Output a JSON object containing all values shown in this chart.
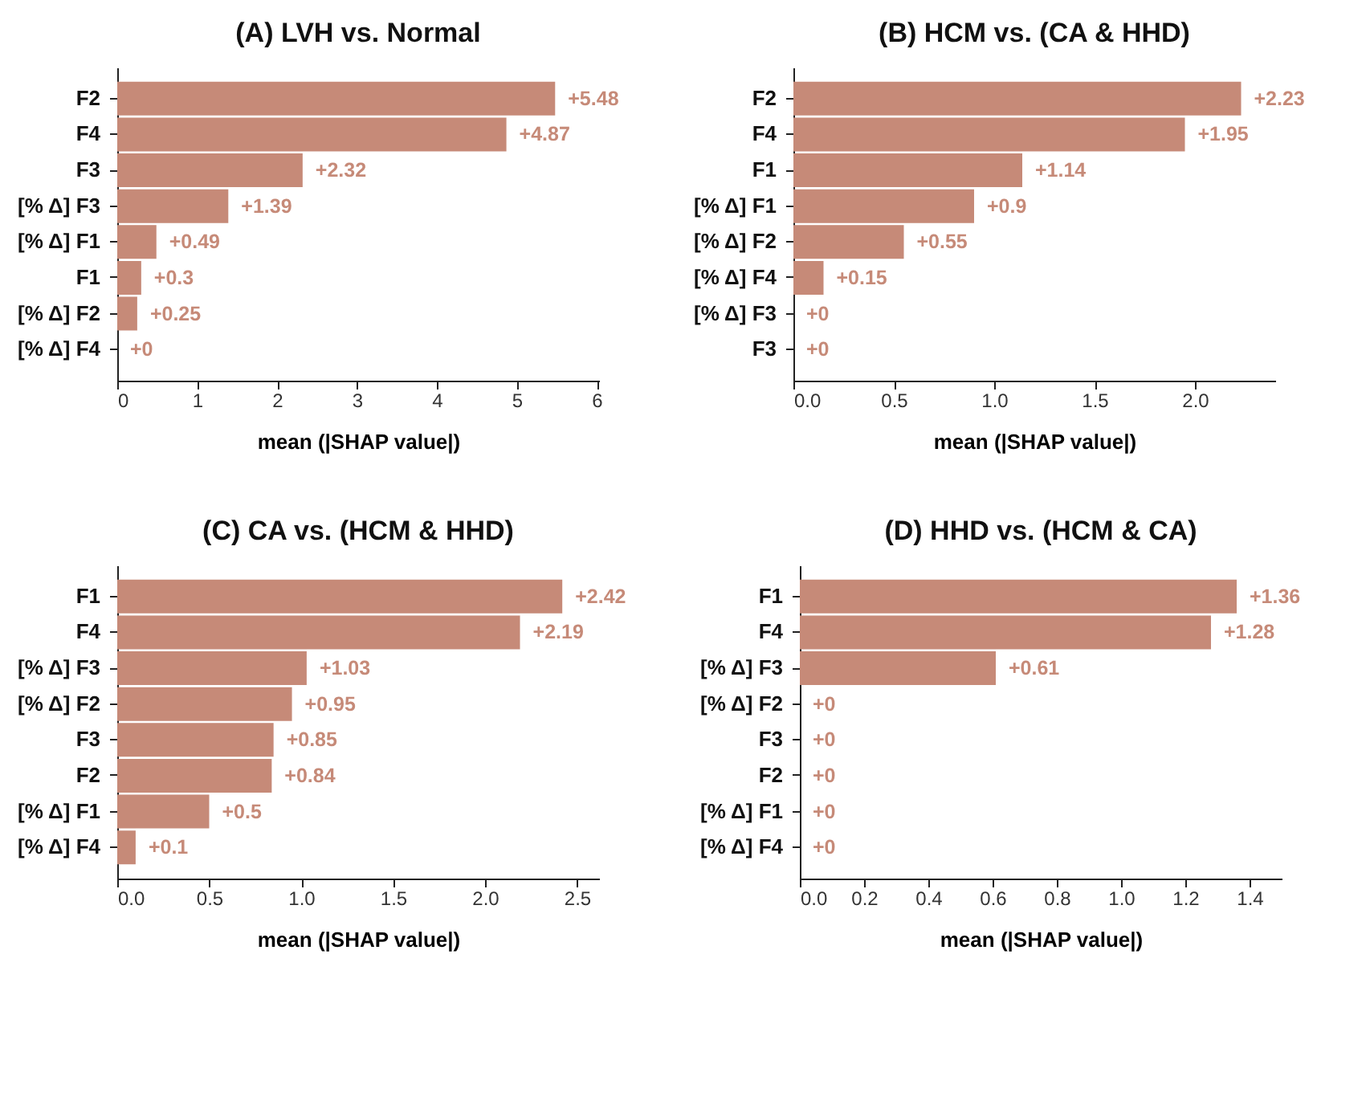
{
  "chart_data": [
    {
      "type": "bar",
      "orientation": "horizontal",
      "title": "(A) LVH vs. Normal",
      "xlabel": "mean (|SHAP value|)",
      "categories": [
        "F2",
        "F4",
        "F3",
        "[% Δ] F3",
        "[% Δ] F1",
        "F1",
        "[% Δ] F2",
        "[% Δ] F4"
      ],
      "values": [
        5.48,
        4.87,
        2.32,
        1.39,
        0.49,
        0.3,
        0.25,
        0
      ],
      "value_labels": [
        "+5.48",
        "+4.87",
        "+2.32",
        "+1.39",
        "+0.49",
        "+0.3",
        "+0.25",
        "+0"
      ],
      "color": "#c68a78",
      "xlim": [
        0,
        6.03
      ],
      "xticks": [
        0,
        1,
        2,
        3,
        4,
        5,
        6
      ]
    },
    {
      "type": "bar",
      "orientation": "horizontal",
      "title": "(B) HCM vs. (CA & HHD)",
      "xlabel": "mean (|SHAP value|)",
      "categories": [
        "F2",
        "F4",
        "F1",
        "[% Δ] F1",
        "[% Δ] F2",
        "[% Δ] F4",
        "[% Δ] F3",
        "F3"
      ],
      "values": [
        2.23,
        1.95,
        1.14,
        0.9,
        0.55,
        0.15,
        0,
        0
      ],
      "value_labels": [
        "+2.23",
        "+1.95",
        "+1.14",
        "+0.9",
        "+0.55",
        "+0.15",
        "+0",
        "+0"
      ],
      "color": "#c68a78",
      "xlim": [
        0,
        2.4
      ],
      "xticks": [
        {
          "value": 0,
          "label": "0.0"
        },
        0.5,
        {
          "value": 1,
          "label": "1.0"
        },
        1.5,
        {
          "value": 2,
          "label": "2.0"
        }
      ]
    },
    {
      "type": "bar",
      "orientation": "horizontal",
      "title": "(C) CA vs. (HCM & HHD)",
      "xlabel": "mean (|SHAP value|)",
      "categories": [
        "F1",
        "F4",
        "[% Δ] F3",
        "[% Δ] F2",
        "F3",
        "F2",
        "[% Δ] F1",
        "[% Δ] F4"
      ],
      "values": [
        2.42,
        2.19,
        1.03,
        0.95,
        0.85,
        0.84,
        0.5,
        0.1
      ],
      "value_labels": [
        "+2.42",
        "+2.19",
        "+1.03",
        "+0.95",
        "+0.85",
        "+0.84",
        "+0.5",
        "+0.1"
      ],
      "color": "#c68a78",
      "xlim": [
        0,
        2.62
      ],
      "xticks": [
        {
          "value": 0,
          "label": "0.0"
        },
        0.5,
        {
          "value": 1,
          "label": "1.0"
        },
        1.5,
        {
          "value": 2,
          "label": "2.0"
        },
        2.5
      ]
    },
    {
      "type": "bar",
      "orientation": "horizontal",
      "title": "(D) HHD vs. (HCM & CA)",
      "xlabel": "mean (|SHAP value|)",
      "categories": [
        "F1",
        "F4",
        "[% Δ] F3",
        "[% Δ] F2",
        "F3",
        "F2",
        "[% Δ] F1",
        "[% Δ] F4"
      ],
      "values": [
        1.36,
        1.28,
        0.61,
        0,
        0,
        0,
        0,
        0
      ],
      "value_labels": [
        "+1.36",
        "+1.28",
        "+0.61",
        "+0",
        "+0",
        "+0",
        "+0",
        "+0"
      ],
      "color": "#c68a78",
      "xlim": [
        0,
        1.5
      ],
      "xticks": [
        {
          "value": 0,
          "label": "0.0"
        },
        0.2,
        0.4,
        0.6,
        0.8,
        {
          "value": 1,
          "label": "1.0"
        },
        1.2,
        1.4
      ]
    }
  ]
}
